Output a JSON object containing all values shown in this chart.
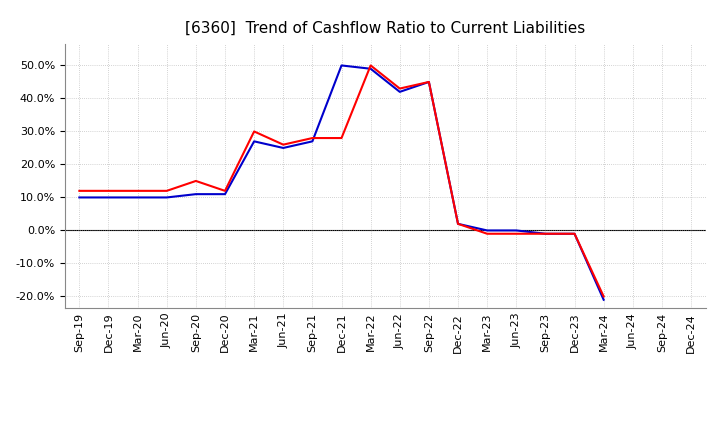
{
  "title": "[6360]  Trend of Cashflow Ratio to Current Liabilities",
  "x_labels": [
    "Sep-19",
    "Dec-19",
    "Mar-20",
    "Jun-20",
    "Sep-20",
    "Dec-20",
    "Mar-21",
    "Jun-21",
    "Sep-21",
    "Dec-21",
    "Mar-22",
    "Jun-22",
    "Sep-22",
    "Dec-22",
    "Mar-23",
    "Jun-23",
    "Sep-23",
    "Dec-23",
    "Mar-24",
    "Jun-24",
    "Sep-24",
    "Dec-24"
  ],
  "operating_cf": [
    0.12,
    0.12,
    0.12,
    0.12,
    0.15,
    0.12,
    0.3,
    0.26,
    0.28,
    0.28,
    0.5,
    0.43,
    0.45,
    0.02,
    -0.01,
    -0.01,
    -0.01,
    -0.01,
    -0.2,
    null,
    null,
    null
  ],
  "free_cf": [
    0.1,
    0.1,
    0.1,
    0.1,
    0.11,
    0.11,
    0.27,
    0.25,
    0.27,
    0.5,
    0.49,
    0.42,
    0.45,
    0.02,
    0.0,
    0.0,
    -0.01,
    -0.01,
    -0.21,
    null,
    null,
    null
  ],
  "ylim": [
    -0.235,
    0.565
  ],
  "yticks": [
    -0.2,
    -0.1,
    0.0,
    0.1,
    0.2,
    0.3,
    0.4,
    0.5
  ],
  "operating_color": "#FF0000",
  "free_color": "#0000CC",
  "background_color": "#FFFFFF",
  "grid_color": "#AAAAAA",
  "title_fontsize": 11,
  "tick_fontsize": 8,
  "legend_fontsize": 9
}
